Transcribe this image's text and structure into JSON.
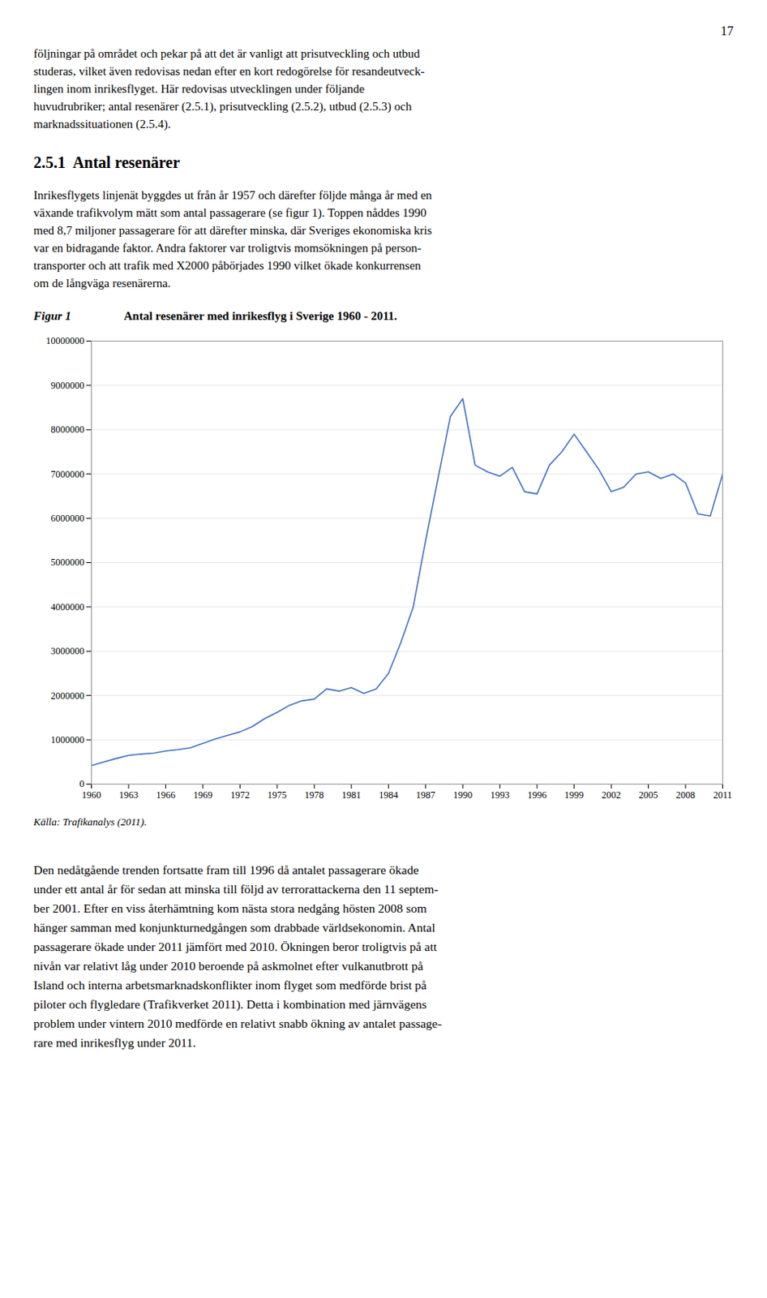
{
  "chart_data": {
    "type": "line",
    "title": "Antal resenärer med inrikesflyg i Sverige 1960 - 2011.",
    "annotations": [
      [
        "17"
      ],
      [
        "följningar på området och pekar på att det är vanligt att prisutveckling och utbud",
        "studeras, vilket även redovisas nedan efter en kort redogörelse för resandeutveck-",
        "lingen inom inrikesflyget. Här redovisas utvecklingen under följande",
        "huvudrubriker; antal resenärer (2.5.1), prisutveckling (2.5.2), utbud (2.5.3) och",
        "marknadssituationen (2.5.4)."
      ],
      [
        "2.5.1  Antal resenärer"
      ],
      [
        "Inrikesflygets linjenät byggdes ut från år 1957 och därefter följde många år med en",
        "växande trafikvolym mätt som antal passagerare (se figur 1). Toppen nåddes 1990",
        "med 8,7 miljoner passagerare för att därefter minska, där Sveriges ekonomiska kris",
        "var en bidragande faktor. Andra faktorer var troligtvis momsökningen på person-",
        "transporter och att trafik med X2000 påbörjades 1990 vilket ökade konkurrensen",
        "om de långväga resenärerna."
      ],
      [
        "Figur 1"
      ],
      [
        "Källa: Trafikanalys (2011)."
      ],
      [
        "Den nedåtgående trenden fortsatte fram till 1996 då antalet passagerare ökade",
        "under ett antal år för sedan att minska till följd av terrorattackerna den 11 septem-",
        "ber 2001. Efter en viss återhämtning kom nästa stora nedgång hösten 2008 som",
        "hänger samman med konjunkturnedgången som drabbade världsekonomin. Antal",
        "passagerare ökade under 2011 jämfört med 2010. Ökningen beror troligtvis på att",
        "nivån var relativt låg under 2010 beroende på askmolnet efter vulkanutbrott på",
        "Island och interna arbetsmarknadskonflikter inom flyget som medförde brist på",
        "piloter och flygledare (Trafikverket 2011). Detta i kombination med järnvägens",
        "problem under vintern 2010 medförde en relativt snabb ökning av antalet passage-",
        "rare med inrikesflyg under 2011."
      ]
    ],
    "x": [
      1960,
      1961,
      1962,
      1963,
      1964,
      1965,
      1966,
      1967,
      1968,
      1969,
      1970,
      1971,
      1972,
      1973,
      1974,
      1975,
      1976,
      1977,
      1978,
      1979,
      1980,
      1981,
      1982,
      1983,
      1984,
      1985,
      1986,
      1987,
      1988,
      1989,
      1990,
      1991,
      1992,
      1993,
      1994,
      1995,
      1996,
      1997,
      1998,
      1999,
      2000,
      2001,
      2002,
      2003,
      2004,
      2005,
      2006,
      2007,
      2008,
      2009,
      2010,
      2011
    ],
    "values": [
      420000,
      500000,
      580000,
      650000,
      680000,
      700000,
      750000,
      780000,
      820000,
      920000,
      1020000,
      1100000,
      1180000,
      1300000,
      1480000,
      1620000,
      1780000,
      1880000,
      1920000,
      2150000,
      2100000,
      2180000,
      2050000,
      2150000,
      2500000,
      3200000,
      4000000,
      5500000,
      6900000,
      8300000,
      8700000,
      7200000,
      7050000,
      6950000,
      7150000,
      6600000,
      6550000,
      7200000,
      7500000,
      7900000,
      7500000,
      7100000,
      6600000,
      6700000,
      7000000,
      7050000,
      6900000,
      7000000,
      6800000,
      6100000,
      6050000,
      7000000
    ],
    "color": "#4472C4",
    "xlim": [
      1960,
      2011
    ],
    "xticks": [
      1960,
      1963,
      1966,
      1969,
      1972,
      1975,
      1978,
      1981,
      1984,
      1987,
      1990,
      1993,
      1996,
      1999,
      2002,
      2005,
      2008,
      2011
    ],
    "ylim": [
      0,
      10000000
    ],
    "yticks": [
      0,
      1000000,
      2000000,
      3000000,
      4000000,
      5000000,
      6000000,
      7000000,
      8000000,
      9000000,
      10000000
    ],
    "grid": true
  }
}
